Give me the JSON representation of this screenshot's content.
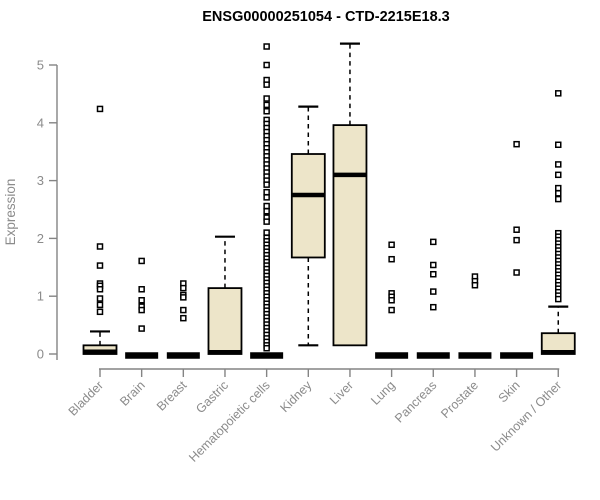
{
  "title": "ENSG00000251054 - CTD-2215E18.3",
  "chart_data": {
    "type": "boxplot",
    "title": "ENSG00000251054 - CTD-2215E18.3",
    "xlabel": "",
    "ylabel": "Expression",
    "ylim": [
      0,
      5.45
    ],
    "yticks": [
      0,
      1,
      2,
      3,
      4,
      5
    ],
    "grid": false,
    "legend": "none",
    "colors": {
      "box_fill": "#EDE5C9",
      "box_stroke": "#000000",
      "outlier_stroke": "#000000",
      "axis_line": "#848484",
      "axis_text": "#8b8b8b",
      "title_text": "#000000"
    },
    "categories": [
      "Bladder",
      "Brain",
      "Breast",
      "Gastric",
      "Hematopoietic cells",
      "Kidney",
      "Liver",
      "Lung",
      "Pancreas",
      "Prostate",
      "Skin",
      "Unknown / Other"
    ],
    "boxes": [
      {
        "name": "Bladder",
        "q1": 0,
        "median": 0.04,
        "q3": 0.15,
        "whisker_low": 0,
        "whisker_high": 0.39,
        "outliers": [
          4.24,
          1.86,
          1.53,
          1.22,
          1.18,
          1.12,
          0.96,
          0.85,
          0.73
        ]
      },
      {
        "name": "Brain",
        "q1": 0,
        "median": 0,
        "q3": 0,
        "whisker_low": 0,
        "whisker_high": 0,
        "outliers": [
          1.61,
          1.12,
          0.93,
          0.82,
          0.76,
          0.44
        ]
      },
      {
        "name": "Breast",
        "q1": 0,
        "median": 0,
        "q3": 0,
        "whisker_low": 0,
        "whisker_high": 0,
        "outliers": [
          1.22,
          1.14,
          1.02,
          0.98,
          0.76,
          0.62
        ]
      },
      {
        "name": "Gastric",
        "q1": 0,
        "median": 0.03,
        "q3": 1.14,
        "whisker_low": 0,
        "whisker_high": 2.03,
        "outliers": []
      },
      {
        "name": "Hematopoietic cells",
        "q1": 0,
        "median": 0,
        "q3": 0,
        "whisker_low": 0,
        "whisker_high": 0,
        "outliers": [
          5.32,
          5.0,
          4.74,
          4.66,
          4.42,
          4.31,
          4.2,
          4.05,
          3.98,
          3.91,
          3.84,
          3.77,
          3.7,
          3.63,
          3.56,
          3.49,
          3.42,
          3.35,
          3.28,
          3.21,
          3.14,
          3.07,
          3.0,
          2.93,
          2.8,
          2.71,
          2.56,
          2.47,
          2.36,
          2.29,
          2.1,
          2.01,
          1.95,
          1.89,
          1.83,
          1.77,
          1.71,
          1.65,
          1.59,
          1.53,
          1.47,
          1.41,
          1.35,
          1.29,
          1.23,
          1.17,
          1.11,
          1.05,
          0.99,
          0.93,
          0.87,
          0.81,
          0.75,
          0.69,
          0.63,
          0.57,
          0.51,
          0.45,
          0.39,
          0.33,
          0.27,
          0.21,
          0.15,
          0.1
        ]
      },
      {
        "name": "Kidney",
        "q1": 1.67,
        "median": 2.75,
        "q3": 3.46,
        "whisker_low": 0.15,
        "whisker_high": 4.28,
        "outliers": []
      },
      {
        "name": "Liver",
        "q1": 0.15,
        "median": 3.1,
        "q3": 3.96,
        "whisker_low": 0.15,
        "whisker_high": 5.37,
        "outliers": []
      },
      {
        "name": "Lung",
        "q1": 0,
        "median": 0,
        "q3": 0,
        "whisker_low": 0,
        "whisker_high": 0,
        "outliers": [
          1.89,
          1.64,
          1.05,
          0.99,
          0.93,
          0.76
        ]
      },
      {
        "name": "Pancreas",
        "q1": 0,
        "median": 0,
        "q3": 0,
        "whisker_low": 0,
        "whisker_high": 0,
        "outliers": [
          1.94,
          1.54,
          1.38,
          1.08,
          0.81
        ]
      },
      {
        "name": "Prostate",
        "q1": 0,
        "median": 0,
        "q3": 0,
        "whisker_low": 0,
        "whisker_high": 0,
        "outliers": [
          1.34,
          1.26,
          1.19
        ]
      },
      {
        "name": "Skin",
        "q1": 0,
        "median": 0,
        "q3": 0,
        "whisker_low": 0,
        "whisker_high": 0,
        "outliers": [
          3.63,
          2.15,
          1.97,
          1.41
        ]
      },
      {
        "name": "Unknown / Other",
        "q1": 0,
        "median": 0.03,
        "q3": 0.36,
        "whisker_low": 0,
        "whisker_high": 0.82,
        "outliers": [
          4.51,
          3.62,
          3.28,
          3.1,
          2.87,
          2.78,
          2.68,
          2.09,
          2.03,
          1.97,
          1.91,
          1.85,
          1.79,
          1.73,
          1.67,
          1.61,
          1.55,
          1.49,
          1.43,
          1.37,
          1.31,
          1.25,
          1.19,
          1.13,
          1.07,
          1.01,
          0.95
        ]
      }
    ]
  }
}
